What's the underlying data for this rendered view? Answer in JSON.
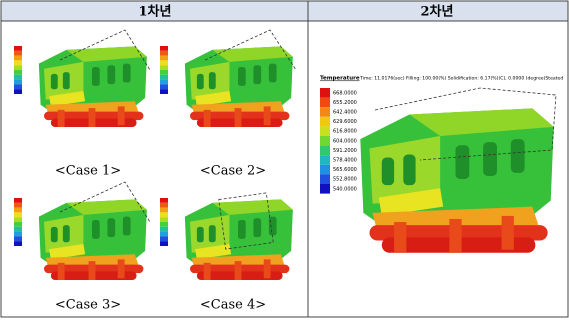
{
  "header": {
    "col1": "1차년",
    "col2": "2차년"
  },
  "year1": {
    "cases": [
      {
        "caption": "<Case 1>"
      },
      {
        "caption": "<Case 2>"
      },
      {
        "caption": "<Case 3>"
      },
      {
        "caption": "<Case 4>"
      }
    ]
  },
  "year2": {
    "image": {
      "legend_title": "Temperature",
      "info": "Time: 11.0176(sec)  Filling: 100.00(%)  Solidification: 6.17(%)(C), 0.0000 (degree)Steated",
      "legend_values": [
        "668.0000",
        "655.2000",
        "642.4000",
        "629.6000",
        "616.8000",
        "604.0000",
        "591.2000",
        "578.4000",
        "565.6000",
        "552.8000",
        "540.0000"
      ]
    }
  }
}
